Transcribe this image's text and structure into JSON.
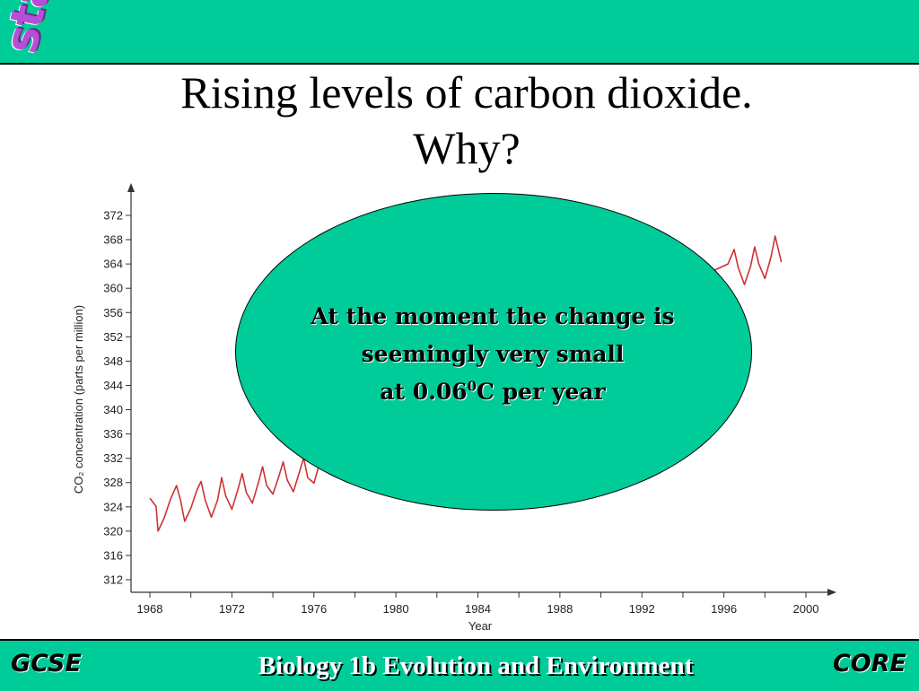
{
  "header": {
    "starter_label": "starter",
    "title_line1": "Rising levels of carbon dioxide.",
    "title_line2": "Why?"
  },
  "callout": {
    "line1": "At the moment the change is",
    "line2": "seemingly very small",
    "line3_prefix": "at 0.06",
    "line3_sup": "0",
    "line3_suffix": "C per year"
  },
  "footer": {
    "left_label": "GCSE",
    "title": "Biology 1b Evolution and Environment",
    "right_label": "CORE"
  },
  "colors": {
    "bar": "#00cc99",
    "starter": "#b74ed8",
    "series": "#cc3333"
  },
  "chart_data": {
    "type": "line",
    "xlabel": "Year",
    "ylabel": "CO₂ concentration (parts per million)",
    "xlim": [
      1968,
      2000
    ],
    "ylim": [
      312,
      372
    ],
    "x_ticks": [
      1968,
      1972,
      1976,
      1980,
      1984,
      1988,
      1992,
      1996,
      2000
    ],
    "y_ticks": [
      312,
      316,
      320,
      324,
      328,
      332,
      336,
      340,
      344,
      348,
      352,
      356,
      360,
      364,
      368,
      372
    ],
    "grid": false,
    "series": [
      {
        "x": [
          1968.0,
          1968.3,
          1968.4,
          1968.7,
          1969.0,
          1969.3,
          1969.5,
          1969.7,
          1970.0,
          1970.3,
          1970.5,
          1970.7,
          1971.0,
          1971.3,
          1971.5,
          1971.7,
          1972.0,
          1972.3,
          1972.5,
          1972.7,
          1973.0,
          1973.3,
          1973.5,
          1973.7,
          1974.0,
          1974.3,
          1974.5,
          1974.7,
          1975.0,
          1975.3,
          1975.5,
          1975.7,
          1976.0,
          1976.3,
          1976.5,
          1996.2,
          1996.5,
          1996.7,
          1997.0,
          1997.3,
          1997.5,
          1997.7,
          1998.0,
          1998.3,
          1998.5,
          1998.8
        ],
        "values": [
          325.4,
          324.1,
          320.0,
          322.2,
          325.2,
          327.5,
          325.0,
          321.6,
          323.8,
          326.8,
          328.2,
          325.1,
          322.3,
          325.1,
          328.8,
          325.8,
          323.6,
          326.9,
          329.5,
          326.4,
          324.6,
          328.1,
          330.6,
          327.5,
          326.1,
          329.1,
          331.4,
          328.4,
          326.5,
          329.8,
          332.1,
          328.8,
          327.9,
          331.4,
          333.3,
          364.0,
          366.4,
          363.4,
          360.6,
          363.6,
          366.8,
          364.0,
          361.6,
          365.2,
          368.6,
          364.3
        ]
      }
    ]
  }
}
